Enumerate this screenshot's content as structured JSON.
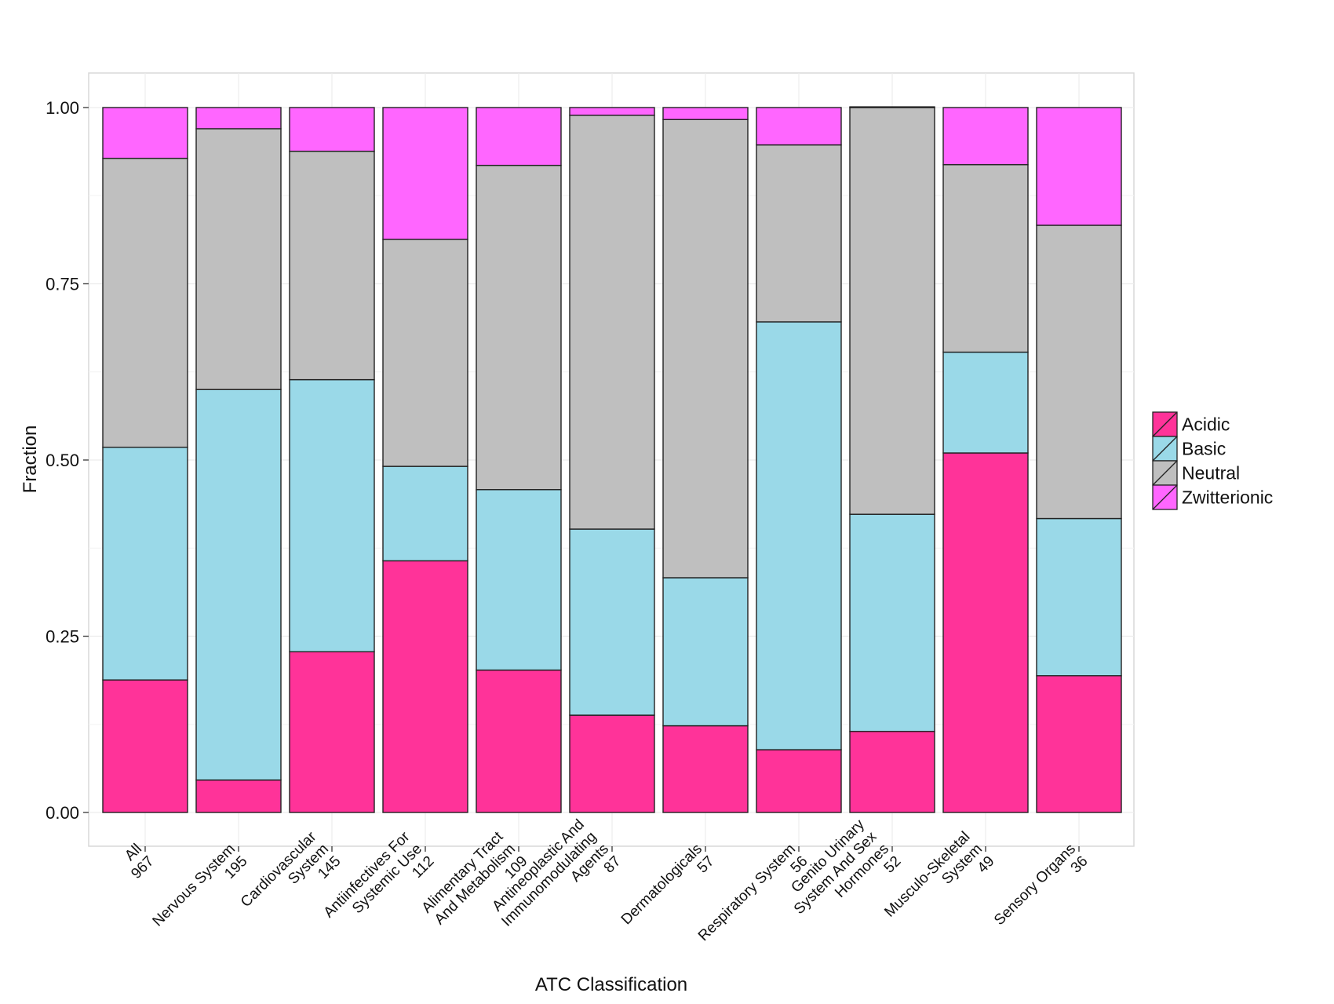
{
  "chart_data": {
    "type": "bar",
    "stacked": true,
    "title": "",
    "xlabel": "ATC Classification",
    "ylabel": "Fraction",
    "ylim": [
      0,
      1
    ],
    "yticks": [
      "0.00",
      "0.25",
      "0.50",
      "0.75",
      "1.00"
    ],
    "ytick_values": [
      0,
      0.25,
      0.5,
      0.75,
      1.0
    ],
    "grid": true,
    "legend_position": "right",
    "categories": [
      "All\n967",
      "Nervous System\n195",
      "Cardiovascular\nSystem\n145",
      "Antiinfectives For\nSystemic Use\n112",
      "Alimentary Tract\nAnd Metabolism\n109",
      "Antineoplastic And\nImmunomodulating\nAgents\n87",
      "Dermatologicals\n57",
      "Respiratory System\n56",
      "Genito Urinary\nSystem And Sex\nHormones\n52",
      "Musculo-Skeletal\nSystem\n49",
      "Sensory Organs\n36"
    ],
    "series": [
      {
        "name": "Acidic",
        "color": "#ff3399",
        "values": [
          0.188,
          0.046,
          0.228,
          0.357,
          0.202,
          0.138,
          0.123,
          0.089,
          0.115,
          0.51,
          0.194
        ]
      },
      {
        "name": "Basic",
        "color": "#9ad9e8",
        "values": [
          0.33,
          0.554,
          0.386,
          0.134,
          0.256,
          0.264,
          0.21,
          0.607,
          0.308,
          0.143,
          0.223
        ]
      },
      {
        "name": "Neutral",
        "color": "#bfbfbf",
        "values": [
          0.41,
          0.37,
          0.324,
          0.322,
          0.46,
          0.587,
          0.65,
          0.251,
          0.577,
          0.266,
          0.416
        ]
      },
      {
        "name": "Zwitterionic",
        "color": "#ff66ff",
        "values": [
          0.072,
          0.03,
          0.062,
          0.187,
          0.082,
          0.011,
          0.017,
          0.053,
          0.001,
          0.081,
          0.167
        ]
      }
    ]
  }
}
